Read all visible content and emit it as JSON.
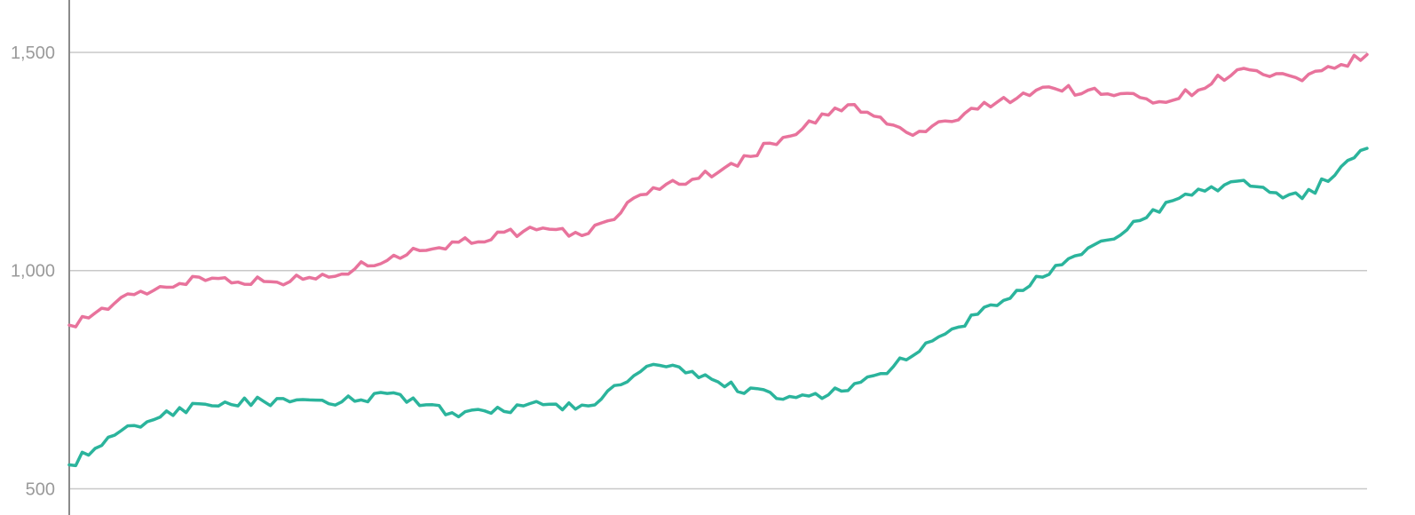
{
  "chart_data": {
    "type": "line",
    "title": "",
    "xlabel": "",
    "ylabel": "",
    "ylim": [
      440,
      1620
    ],
    "yticks": [
      {
        "value": 500,
        "label": "500"
      },
      {
        "value": 1000,
        "label": "1,000"
      },
      {
        "value": 1500,
        "label": "1,500"
      }
    ],
    "grid": true,
    "legend": "none",
    "x": [
      0,
      25,
      50,
      75,
      100,
      125,
      150,
      175,
      200,
      225,
      250,
      275,
      300,
      325,
      350,
      375,
      400,
      425,
      450,
      475,
      500
    ],
    "series": [
      {
        "color": "#e8739c",
        "values": [
          875,
          945,
          985,
          975,
          985,
          1035,
          1065,
          1090,
          1085,
          1190,
          1225,
          1305,
          1380,
          1310,
          1370,
          1420,
          1405,
          1390,
          1460,
          1435,
          1495
        ]
      },
      {
        "color": "#2bb49c",
        "values": [
          555,
          645,
          695,
          700,
          695,
          720,
          665,
          690,
          690,
          785,
          745,
          705,
          725,
          805,
          900,
          985,
          1070,
          1160,
          1205,
          1165,
          1280
        ]
      }
    ]
  }
}
